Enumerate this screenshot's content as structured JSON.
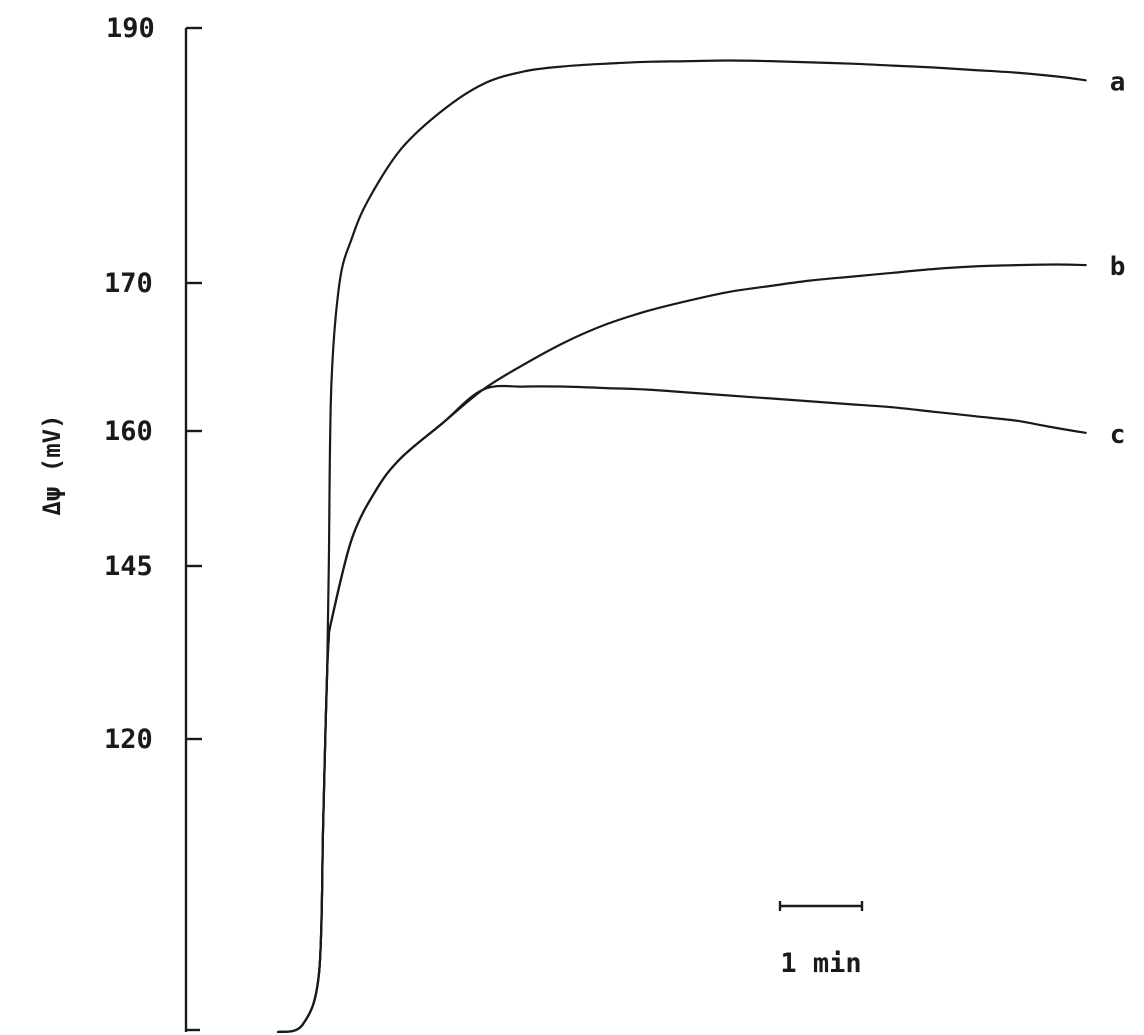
{
  "chart_data": {
    "type": "line",
    "title": "",
    "xlabel": "",
    "ylabel": "Δψ (mV)",
    "y_ticks": [
      "190",
      "170",
      "160",
      "145",
      "120"
    ],
    "ylim": [
      100,
      190
    ],
    "grid": false,
    "x_unit": "min",
    "scale_bar": {
      "label": "1 min",
      "minutes": 1
    },
    "series": [
      {
        "name": "a",
        "x": [
          0,
          0.3,
          0.5,
          0.55,
          0.58,
          0.6,
          0.62,
          0.65,
          0.75,
          0.9,
          1.1,
          1.5,
          2.0,
          2.5,
          3.0,
          3.5,
          4.0,
          4.5,
          5.0,
          5.5,
          6.0,
          6.5,
          7.0,
          7.5,
          8.0,
          8.5,
          9.0,
          9.5,
          9.85
        ],
        "y": [
          100,
          100.5,
          104,
          114,
          122,
          130,
          145,
          163,
          170,
          173.5,
          176.5,
          180.5,
          183.5,
          185.6,
          186.6,
          187.0,
          187.2,
          187.35,
          187.4,
          187.45,
          187.4,
          187.3,
          187.2,
          187.05,
          186.9,
          186.7,
          186.5,
          186.2,
          185.9
        ]
      },
      {
        "name": "b",
        "x": [
          0,
          0.3,
          0.5,
          0.55,
          0.58,
          0.6,
          0.62,
          0.65,
          0.9,
          1.2,
          1.5,
          2.0,
          2.5,
          3.0,
          3.5,
          4.0,
          4.5,
          5.0,
          5.5,
          6.0,
          6.5,
          7.0,
          7.5,
          8.0,
          8.5,
          9.0,
          9.5,
          9.85
        ],
        "y": [
          100,
          100.5,
          104,
          114,
          122,
          130,
          134.5,
          137,
          148,
          153.5,
          157.0,
          160.5,
          162.8,
          164.5,
          166.0,
          167.2,
          168.1,
          168.8,
          169.4,
          169.8,
          170.2,
          170.5,
          170.8,
          171.1,
          171.3,
          171.4,
          171.45,
          171.4
        ]
      },
      {
        "name": "c",
        "x": [
          0,
          0.3,
          0.5,
          0.55,
          0.58,
          0.6,
          0.62,
          0.65,
          0.9,
          1.2,
          1.5,
          2.0,
          2.5,
          3.0,
          3.5,
          4.0,
          4.5,
          5.0,
          5.5,
          6.0,
          6.5,
          7.0,
          7.5,
          8.0,
          8.5,
          9.0,
          9.3,
          9.6,
          9.85
        ],
        "y": [
          100,
          100.5,
          104,
          114,
          122,
          130,
          134.5,
          137,
          148,
          153.5,
          157.0,
          160.5,
          162.8,
          163.0,
          163.0,
          162.9,
          162.8,
          162.6,
          162.4,
          162.2,
          162.0,
          161.8,
          161.6,
          161.3,
          161.0,
          160.7,
          160.4,
          160.1,
          159.8
        ]
      }
    ]
  }
}
